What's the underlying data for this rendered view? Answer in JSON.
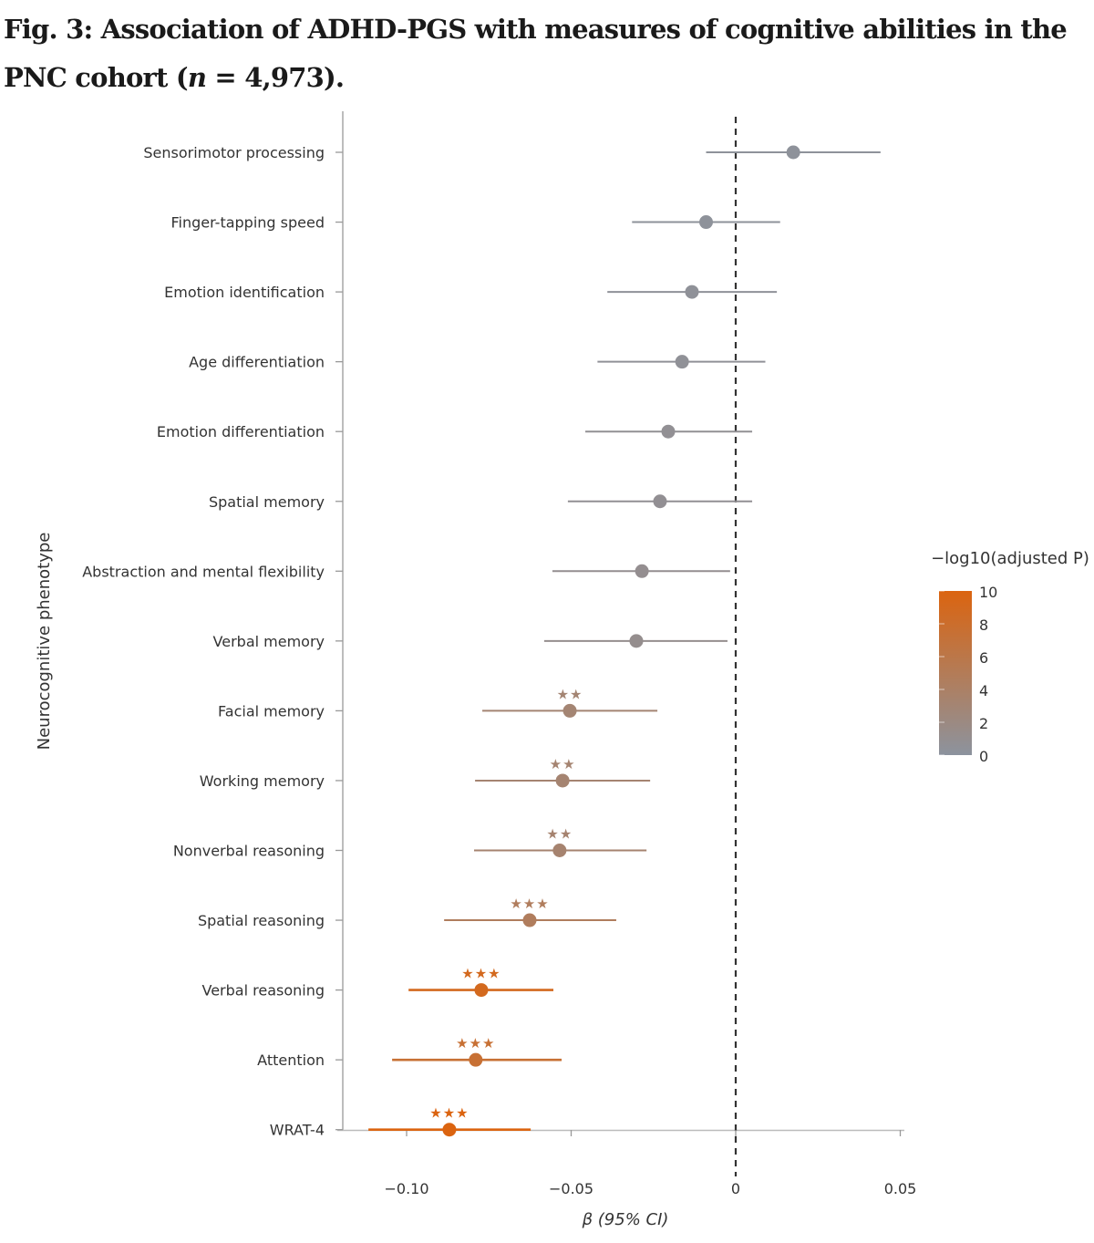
{
  "title": {
    "prefix": "Fig. 3: Association of ADHD-PGS with measures of cognitive abilities in the PNC cohort (",
    "n_symbol": "n",
    "suffix": " = 4,973)."
  },
  "chart_data": {
    "type": "forest",
    "xlabel": "β (95% CI)",
    "ylabel": "Neurocognitive phenotype",
    "xlim": [
      -0.12,
      0.05
    ],
    "xticks": [
      -0.1,
      -0.05,
      0,
      0.05
    ],
    "xtick_labels": [
      "−0.10",
      "−0.05",
      "0",
      "0.05"
    ],
    "reference_line": 0,
    "colorbar": {
      "title": "−log10(adjusted P)",
      "range": [
        0,
        10
      ],
      "ticks": [
        "0",
        "2",
        "4",
        "6",
        "8",
        "10"
      ],
      "colors": [
        "#8c939e",
        "#db6410"
      ]
    },
    "rows": [
      {
        "label": "Sensorimotor processing",
        "beta": 0.0175,
        "ci": [
          -0.009,
          0.044
        ],
        "neglog10p": 0.3,
        "stars": ""
      },
      {
        "label": "Finger-tapping speed",
        "beta": -0.009,
        "ci": [
          -0.0315,
          0.0135
        ],
        "neglog10p": 0.3,
        "stars": ""
      },
      {
        "label": "Emotion identification",
        "beta": -0.0133,
        "ci": [
          -0.039,
          0.0125
        ],
        "neglog10p": 0.4,
        "stars": ""
      },
      {
        "label": "Age differentiation",
        "beta": -0.0163,
        "ci": [
          -0.042,
          0.009
        ],
        "neglog10p": 0.5,
        "stars": ""
      },
      {
        "label": "Emotion differentiation",
        "beta": -0.0205,
        "ci": [
          -0.0457,
          0.005
        ],
        "neglog10p": 0.7,
        "stars": ""
      },
      {
        "label": "Spatial memory",
        "beta": -0.023,
        "ci": [
          -0.051,
          0.005
        ],
        "neglog10p": 0.8,
        "stars": ""
      },
      {
        "label": "Abstraction and mental flexibility",
        "beta": -0.0285,
        "ci": [
          -0.0557,
          -0.0017
        ],
        "neglog10p": 1.0,
        "stars": ""
      },
      {
        "label": "Verbal memory",
        "beta": -0.0302,
        "ci": [
          -0.0582,
          -0.0025
        ],
        "neglog10p": 1.1,
        "stars": ""
      },
      {
        "label": "Facial memory",
        "beta": -0.0504,
        "ci": [
          -0.077,
          -0.0238
        ],
        "neglog10p": 3.0,
        "stars": "**"
      },
      {
        "label": "Working memory",
        "beta": -0.0526,
        "ci": [
          -0.0792,
          -0.026
        ],
        "neglog10p": 3.2,
        "stars": "**"
      },
      {
        "label": "Nonverbal reasoning",
        "beta": -0.0535,
        "ci": [
          -0.0795,
          -0.0271
        ],
        "neglog10p": 3.3,
        "stars": "**"
      },
      {
        "label": "Spatial reasoning",
        "beta": -0.0626,
        "ci": [
          -0.0886,
          -0.0363
        ],
        "neglog10p": 4.6,
        "stars": "***"
      },
      {
        "label": "Verbal reasoning",
        "beta": -0.0773,
        "ci": [
          -0.0994,
          -0.0554
        ],
        "neglog10p": 9.0,
        "stars": "***"
      },
      {
        "label": "Attention",
        "beta": -0.079,
        "ci": [
          -0.1044,
          -0.0529
        ],
        "neglog10p": 7.5,
        "stars": "***"
      },
      {
        "label": "WRAT-4",
        "beta": -0.087,
        "ci": [
          -0.1116,
          -0.0623
        ],
        "neglog10p": 10,
        "stars": "***"
      }
    ]
  }
}
